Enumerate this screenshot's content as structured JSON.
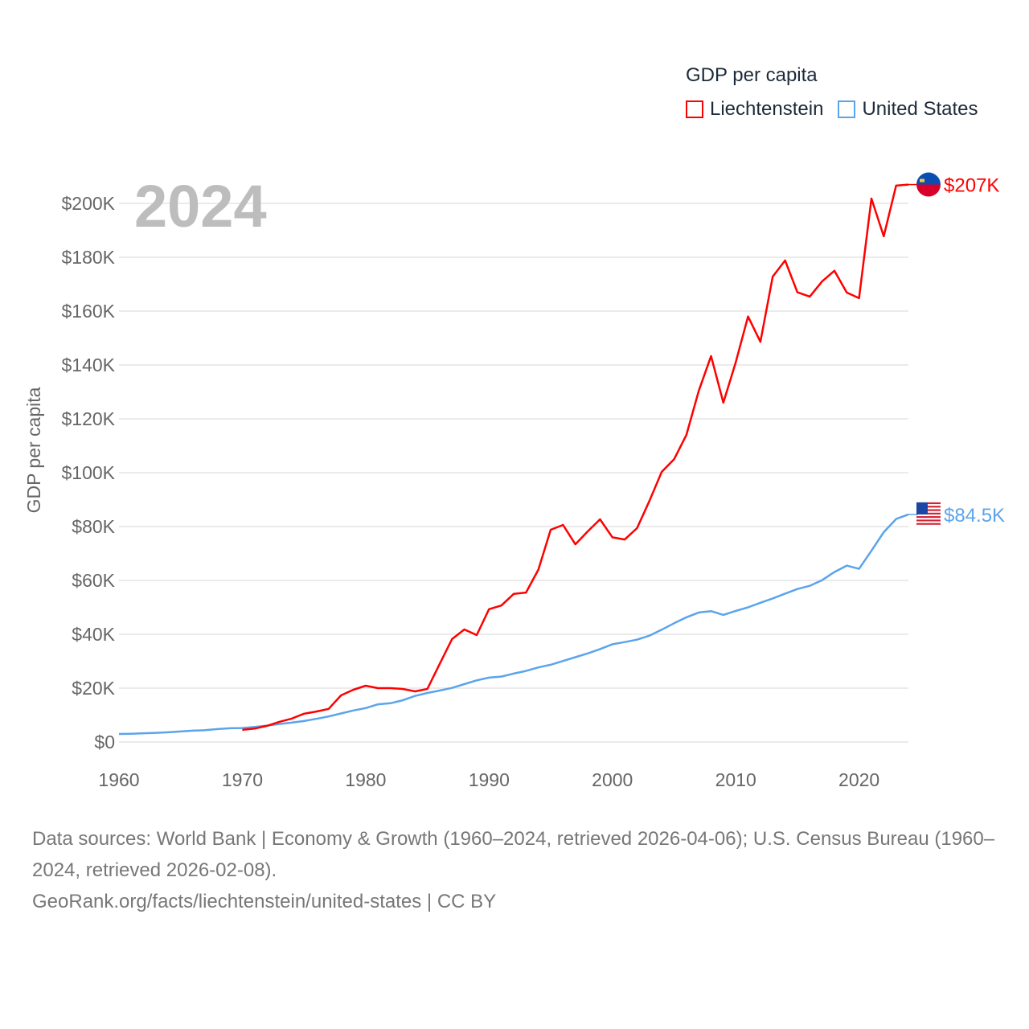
{
  "chart_data": {
    "type": "line",
    "title": "GDP per capita",
    "year_label": "2024",
    "ylabel": "GDP per capita",
    "xlabel": "",
    "xlim": [
      1960,
      2024
    ],
    "ylim": [
      0,
      200000
    ],
    "x_ticks": [
      1960,
      1970,
      1980,
      1990,
      2000,
      2010,
      2020
    ],
    "x_tick_labels": [
      "1960",
      "1970",
      "1980",
      "1990",
      "2000",
      "2010",
      "2020"
    ],
    "y_ticks": [
      0,
      20000,
      40000,
      60000,
      80000,
      100000,
      120000,
      140000,
      160000,
      180000,
      200000
    ],
    "y_tick_labels": [
      "$0",
      "$20K",
      "$40K",
      "$60K",
      "$80K",
      "$100K",
      "$120K",
      "$140K",
      "$160K",
      "$180K",
      "$200K"
    ],
    "grid": true,
    "legend_position": "top-right",
    "series": [
      {
        "name": "Liechtenstein",
        "color": "#ff0000",
        "end_label": "$207K",
        "flag": "liechtenstein-flag",
        "start_year": 1970,
        "values": [
          4.5,
          5,
          6,
          7.5,
          8.7,
          10.5,
          11.3,
          12.3,
          17.3,
          19.4,
          20.9,
          20,
          20,
          19.7,
          18.8,
          19.7,
          29,
          38.2,
          41.8,
          39.7,
          49.3,
          50.7,
          55,
          55.5,
          64,
          78.8,
          80.6,
          73.4,
          78.2,
          82.7,
          76,
          75.2,
          79.4,
          89.5,
          100.3,
          105,
          114,
          130.4,
          143.3,
          126,
          141,
          158,
          148.6,
          172.8,
          178.8,
          167,
          165.4,
          171,
          175,
          166.9,
          164.8,
          201.8,
          187.8,
          206.6,
          207
        ]
      },
      {
        "name": "United States",
        "color": "#5ba4ec",
        "end_label": "$84.5K",
        "flag": "united-states-flag",
        "start_year": 1960,
        "values": [
          3.0,
          3.07,
          3.24,
          3.4,
          3.6,
          3.9,
          4.2,
          4.4,
          4.8,
          5.1,
          5.2,
          5.6,
          6.1,
          6.7,
          7.2,
          7.8,
          8.6,
          9.5,
          10.6,
          11.7,
          12.6,
          14.0,
          14.4,
          15.5,
          17.1,
          18.2,
          19.1,
          20.1,
          21.5,
          22.9,
          23.9,
          24.3,
          25.4,
          26.4,
          27.7,
          28.7,
          30.1,
          31.5,
          32.9,
          34.5,
          36.3,
          37.1,
          38.0,
          39.5,
          41.7,
          44.1,
          46.3,
          48.1,
          48.6,
          47.2,
          48.7,
          50.0,
          51.7,
          53.3,
          55.1,
          56.8,
          58.0,
          60.1,
          63.1,
          65.5,
          64.3,
          71.0,
          77.9,
          82.8,
          84.5
        ]
      }
    ],
    "value_unit": "thousands USD"
  },
  "footer": {
    "line1": "Data sources: World Bank | Economy & Growth (1960–2024, retrieved 2026-04-06); U.S. Census Bureau (1960–2024, retrieved 2026-02-08).",
    "line2": "GeoRank.org/facts/liechtenstein/united-states | CC BY"
  }
}
